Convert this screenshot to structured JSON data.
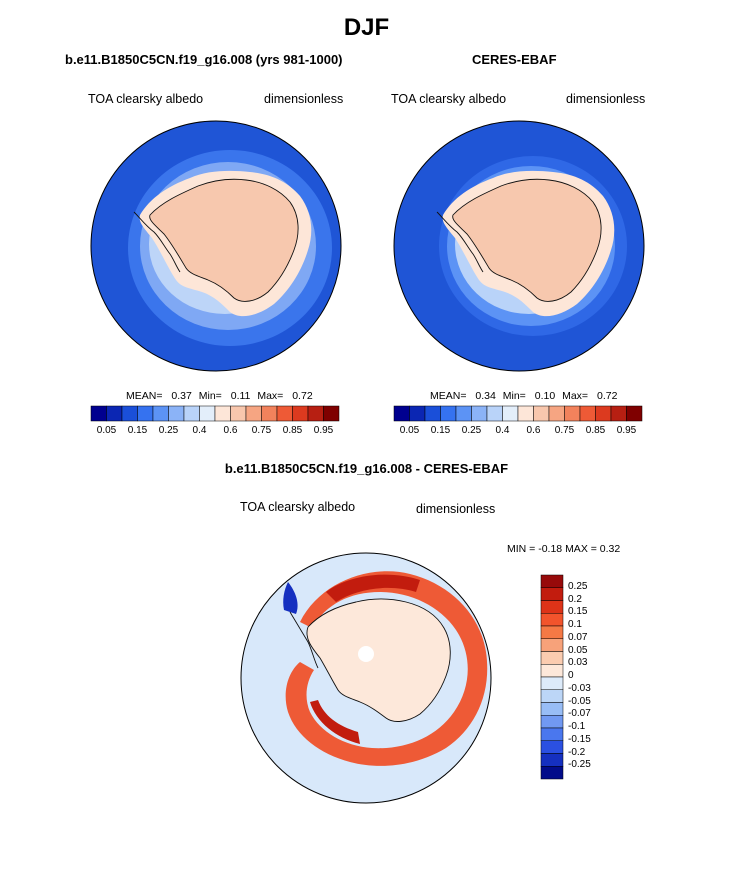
{
  "title": "DJF",
  "panels": [
    {
      "title": "b.e11.B1850C5CN.f19_g16.008 (yrs 981-1000)",
      "variable": "TOA clearsky albedo",
      "units": "dimensionless",
      "stats": {
        "mean_label": "MEAN=",
        "mean": "0.37",
        "min_label": "Min=",
        "min": "0.11",
        "max_label": "Max=",
        "max": "0.72"
      }
    },
    {
      "title": "CERES-EBAF",
      "variable": "TOA clearsky albedo",
      "units": "dimensionless",
      "stats": {
        "mean_label": "MEAN=",
        "mean": "0.34",
        "min_label": "Min=",
        "min": "0.10",
        "max_label": "Max=",
        "max": "0.72"
      }
    }
  ],
  "albedo_colorbar": {
    "colors": [
      "#00008f",
      "#0b26b3",
      "#1a4fd9",
      "#3572f0",
      "#5c93f5",
      "#8bb3f7",
      "#b9d3f9",
      "#e3eefa",
      "#fde6d8",
      "#f8c7ad",
      "#f6a582",
      "#f2825c",
      "#ee5a36",
      "#dc3a1f",
      "#b71f12",
      "#7f0000"
    ],
    "labels": [
      "0.05",
      "0.15",
      "0.25",
      "0.4",
      "0.6",
      "0.75",
      "0.85",
      "0.95"
    ]
  },
  "diff_panel": {
    "title": "b.e11.B1850C5CN.f19_g16.008 - CERES-EBAF",
    "variable": "TOA clearsky albedo",
    "units": "dimensionless",
    "minmax": "MIN =  -0.18 MAX =   0.32"
  },
  "diff_colorbar": {
    "colors": [
      "#970a0a",
      "#c21c0e",
      "#dd3318",
      "#f2542c",
      "#f57945",
      "#f7a27a",
      "#fbccb0",
      "#fde8da",
      "#ddebfa",
      "#bcd6f7",
      "#98bdf6",
      "#7199f2",
      "#4a77ee",
      "#2b50e2",
      "#1530c0",
      "#020c8a"
    ],
    "labels": [
      "0.25",
      "0.2",
      "0.15",
      "0.1",
      "0.07",
      "0.05",
      "0.03",
      "0",
      "-0.03",
      "-0.05",
      "-0.07",
      "-0.1",
      "-0.15",
      "-0.2",
      "-0.25"
    ]
  },
  "map_colors": {
    "ocean_dark": "#1f55d6",
    "ocean_mid": "#3a75ec",
    "ocean_light": "#7fa8f4",
    "ice_edge": "#bdd5f8",
    "antarctica": "#f7c8ae",
    "diff_bg": "#d8e8fa",
    "diff_red": "#e8502c",
    "diff_darkred": "#c21c0e"
  }
}
